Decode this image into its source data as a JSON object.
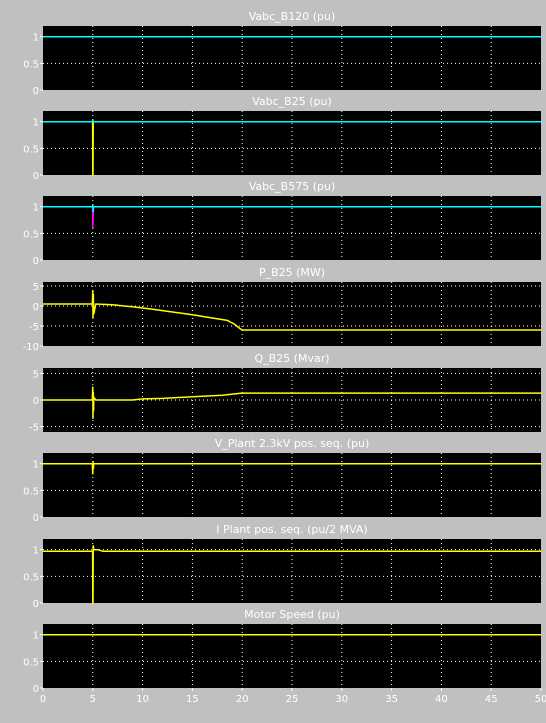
{
  "colors": {
    "background": "#c0c0c0",
    "axes": "#000000",
    "grid": "#ffffff",
    "text": "#ffffff",
    "yellow": "#ffff00",
    "cyan": "#00ffff",
    "magenta": "#ff00ff"
  },
  "chart_data": [
    {
      "type": "line",
      "title": "Vabc_B120 (pu)",
      "ylim": [
        0,
        1.2
      ],
      "yticks": [
        "0",
        "0.5",
        "1"
      ],
      "xlim": [
        0,
        50
      ],
      "grid": true,
      "series": [
        {
          "color": "#ffff00",
          "x": [
            0,
            50
          ],
          "y": [
            1,
            1
          ]
        },
        {
          "color": "#00ffff",
          "x": [
            0,
            50
          ],
          "y": [
            1,
            1
          ]
        }
      ]
    },
    {
      "type": "line",
      "title": "Vabc_B25 (pu)",
      "ylim": [
        0,
        1.2
      ],
      "yticks": [
        "0",
        "0.5",
        "1"
      ],
      "xlim": [
        0,
        50
      ],
      "grid": true,
      "series": [
        {
          "color": "#ffff00",
          "x": [
            0,
            4.98,
            5.0,
            5.02,
            5.04,
            5.06,
            50
          ],
          "y": [
            1,
            1,
            0.0,
            0.0,
            1.0,
            1.0,
            1.0
          ]
        },
        {
          "color": "#00ffff",
          "x": [
            0,
            4.99,
            5.0,
            5.04,
            5.05,
            50
          ],
          "y": [
            1,
            1,
            1.05,
            1.0,
            1.0,
            1.0
          ]
        }
      ]
    },
    {
      "type": "line",
      "title": "Vabc_B575 (pu)",
      "ylim": [
        0,
        1.2
      ],
      "yticks": [
        "0",
        "0.5",
        "1"
      ],
      "xlim": [
        0,
        50
      ],
      "grid": true,
      "series": [
        {
          "color": "#ffff00",
          "x": [
            0,
            50
          ],
          "y": [
            1,
            1
          ]
        },
        {
          "color": "#ff00ff",
          "x": [
            0,
            4.98,
            5.0,
            5.03,
            5.06,
            50
          ],
          "y": [
            1,
            1,
            0.6,
            0.75,
            1.0,
            1.0
          ]
        },
        {
          "color": "#00ffff",
          "x": [
            0,
            4.99,
            5.0,
            5.04,
            5.06,
            50
          ],
          "y": [
            1,
            1,
            1.05,
            0.9,
            1.0,
            1.0
          ]
        }
      ]
    },
    {
      "type": "line",
      "title": "P_B25 (MW)",
      "ylim": [
        -10,
        6
      ],
      "yticks": [
        "-10",
        "-5",
        "0",
        "5"
      ],
      "xlim": [
        0,
        50
      ],
      "grid": true,
      "series": [
        {
          "color": "#ffff00",
          "x": [
            0,
            4.95,
            5.0,
            5.02,
            5.05,
            5.1,
            5.3,
            7,
            9,
            11,
            13,
            15,
            17,
            18.5,
            19.2,
            19.7,
            20,
            50
          ],
          "y": [
            0.5,
            0.5,
            4,
            -3,
            3,
            -2,
            0.5,
            0.3,
            -0.2,
            -0.8,
            -1.5,
            -2.2,
            -3.0,
            -3.6,
            -4.5,
            -5.5,
            -6,
            -6
          ]
        }
      ]
    },
    {
      "type": "line",
      "title": "Q_B25 (Mvar)",
      "ylim": [
        -6,
        6
      ],
      "yticks": [
        "-5",
        "0",
        "5"
      ],
      "xlim": [
        0,
        50
      ],
      "grid": true,
      "series": [
        {
          "color": "#ffff00",
          "x": [
            0,
            4.95,
            5.0,
            5.02,
            5.05,
            5.08,
            5.1,
            5.3,
            9,
            10,
            12,
            15,
            18,
            19.5,
            20,
            50
          ],
          "y": [
            0,
            0,
            2.5,
            -3.5,
            1.5,
            -2,
            0.5,
            0,
            0,
            0.2,
            0.3,
            0.6,
            0.9,
            1.2,
            1.3,
            1.3
          ]
        }
      ]
    },
    {
      "type": "line",
      "title": "V_Plant 2.3kV pos. seq. (pu)",
      "ylim": [
        0,
        1.2
      ],
      "yticks": [
        "0",
        "0.5",
        "1"
      ],
      "xlim": [
        0,
        50
      ],
      "grid": true,
      "series": [
        {
          "color": "#ffff00",
          "x": [
            0,
            4.95,
            5.0,
            5.03,
            5.06,
            5.1,
            5.2,
            50
          ],
          "y": [
            1,
            1,
            0.8,
            1.05,
            0.9,
            1.0,
            1.0,
            1.0
          ]
        }
      ]
    },
    {
      "type": "line",
      "title": "I Plant pos. seq. (pu/2 MVA)",
      "ylim": [
        0,
        1.2
      ],
      "yticks": [
        "0",
        "0.5",
        "1"
      ],
      "xlim": [
        0,
        50
      ],
      "grid": true,
      "series": [
        {
          "color": "#ffff00",
          "x": [
            0,
            4.98,
            5.0,
            5.02,
            5.04,
            5.1,
            5.5,
            6,
            50
          ],
          "y": [
            0.97,
            0.97,
            0.0,
            0.0,
            1.08,
            1.0,
            1.0,
            0.97,
            0.97
          ]
        }
      ]
    },
    {
      "type": "line",
      "title": "Motor Speed (pu)",
      "ylim": [
        0,
        1.2
      ],
      "yticks": [
        "0",
        "0.5",
        "1"
      ],
      "xlim": [
        0,
        50
      ],
      "xticks": [
        "0",
        "5",
        "10",
        "15",
        "20",
        "25",
        "30",
        "35",
        "40",
        "45",
        "50"
      ],
      "grid": true,
      "series": [
        {
          "color": "#ffff00",
          "x": [
            0,
            50
          ],
          "y": [
            1,
            1
          ]
        }
      ]
    }
  ]
}
